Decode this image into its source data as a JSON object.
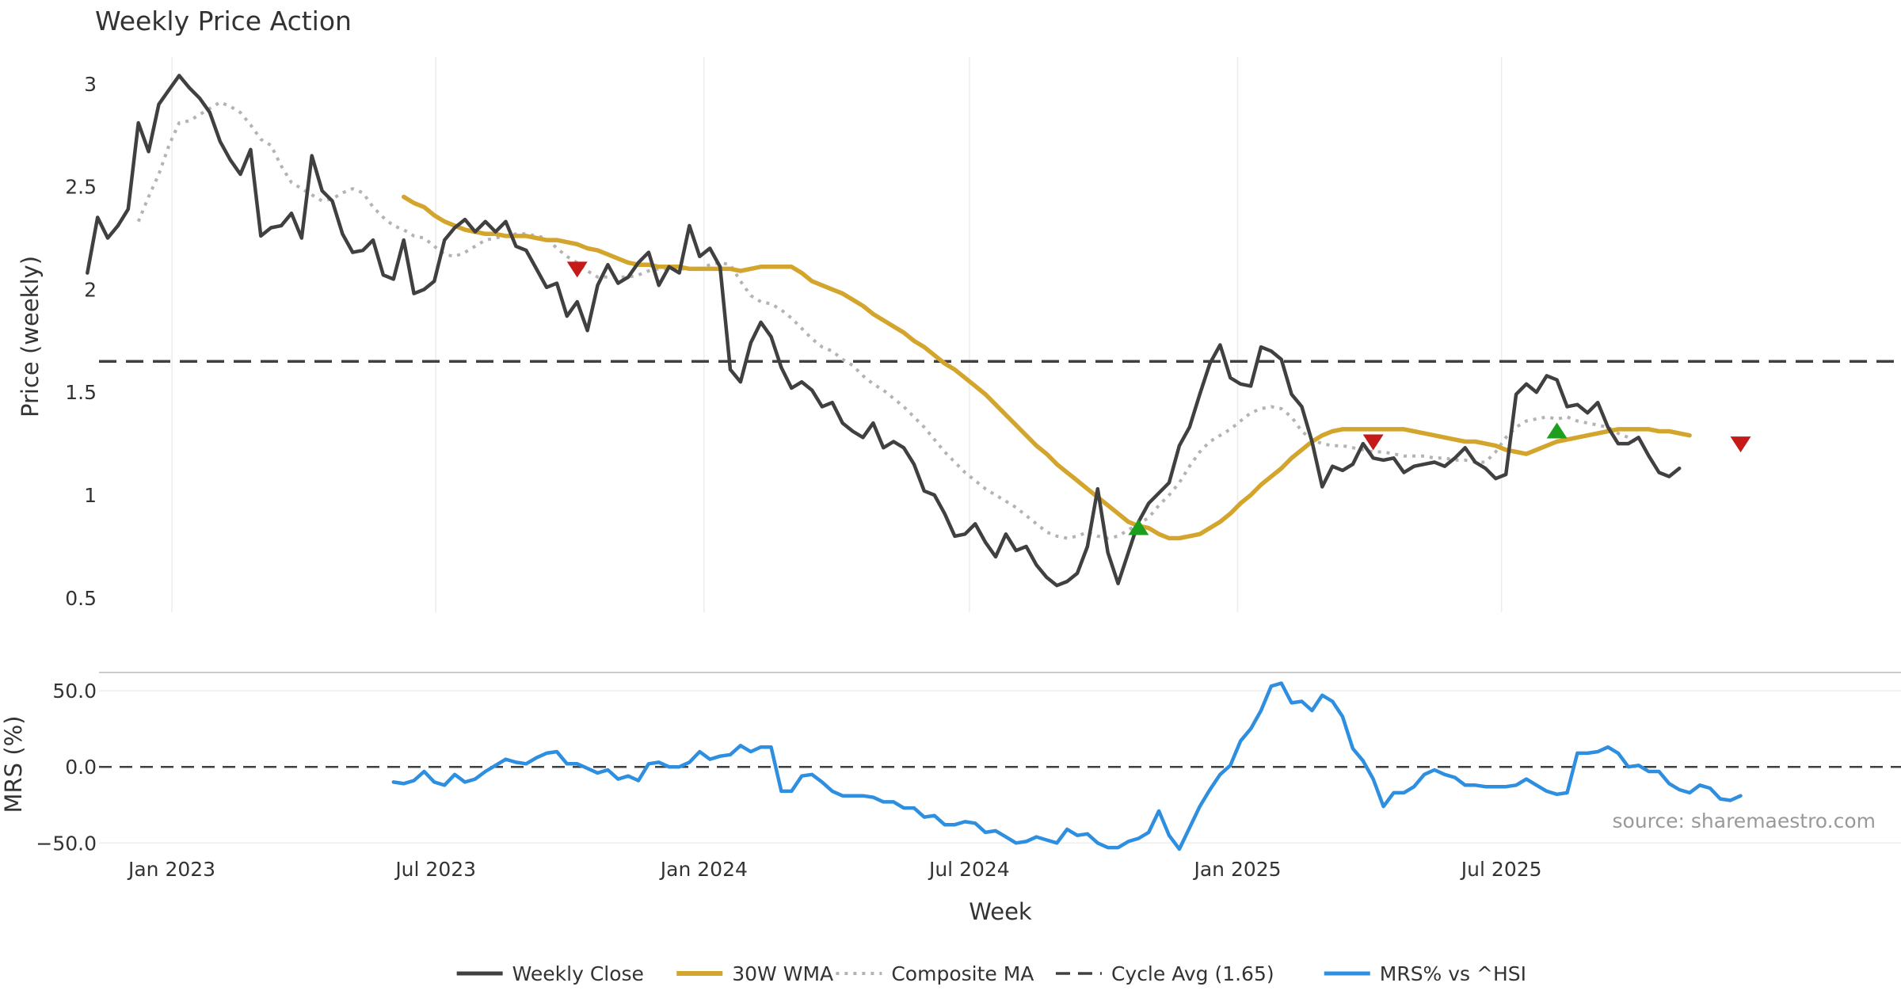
{
  "chart_data": {
    "type": "line",
    "title": "Weekly Price Action",
    "xlabel": "Week",
    "source": "source: sharemaestro.com",
    "x_ticks": [
      {
        "label": "Jan 2023",
        "date": "2023-01-01"
      },
      {
        "label": "Jul 2023",
        "date": "2023-07-01"
      },
      {
        "label": "Jan 2024",
        "date": "2024-01-01"
      },
      {
        "label": "Jul 2024",
        "date": "2024-07-01"
      },
      {
        "label": "Jan 2025",
        "date": "2025-01-01"
      },
      {
        "label": "Jul 2025",
        "date": "2025-07-01"
      }
    ],
    "x_range": [
      "2022-11-12",
      "2026-04-01"
    ],
    "price_panel": {
      "ylabel": "Price (weekly)",
      "ylim": [
        0.43,
        3.13
      ],
      "yticks": [
        0.5,
        1,
        1.5,
        2,
        2.5,
        3
      ],
      "ytick_labels": [
        "0.5",
        "1",
        "1.5",
        "2",
        "2.5",
        "3"
      ],
      "cycle_avg": 1.65,
      "series": [
        {
          "name": "Weekly Close",
          "color": "#404040",
          "style": "solid",
          "width": 4.5,
          "start": "2022-11-04",
          "values": [
            2.08,
            2.35,
            2.25,
            2.31,
            2.39,
            2.81,
            2.67,
            2.9,
            2.97,
            3.04,
            2.98,
            2.93,
            2.86,
            2.72,
            2.63,
            2.56,
            2.68,
            2.26,
            2.3,
            2.31,
            2.37,
            2.25,
            2.65,
            2.48,
            2.43,
            2.27,
            2.18,
            2.19,
            2.24,
            2.07,
            2.05,
            2.24,
            1.98,
            2.0,
            2.04,
            2.24,
            2.3,
            2.34,
            2.28,
            2.33,
            2.28,
            2.33,
            2.21,
            2.19,
            2.1,
            2.01,
            2.03,
            1.87,
            1.94,
            1.8,
            2.02,
            2.12,
            2.03,
            2.06,
            2.13,
            2.18,
            2.02,
            2.11,
            2.08,
            2.31,
            2.16,
            2.2,
            2.11,
            1.61,
            1.55,
            1.74,
            1.84,
            1.77,
            1.62,
            1.52,
            1.55,
            1.51,
            1.43,
            1.45,
            1.35,
            1.31,
            1.28,
            1.35,
            1.23,
            1.26,
            1.23,
            1.15,
            1.02,
            1.0,
            0.91,
            0.8,
            0.81,
            0.86,
            0.77,
            0.7,
            0.81,
            0.73,
            0.75,
            0.66,
            0.6,
            0.56,
            0.58,
            0.62,
            0.75,
            1.03,
            0.72,
            0.57,
            0.72,
            0.87,
            0.96,
            1.01,
            1.06,
            1.24,
            1.33,
            1.49,
            1.64,
            1.73,
            1.57,
            1.54,
            1.53,
            1.72,
            1.7,
            1.66,
            1.49,
            1.43,
            1.26,
            1.04,
            1.14,
            1.12,
            1.15,
            1.25,
            1.18,
            1.17,
            1.18,
            1.11,
            1.14,
            1.15,
            1.16,
            1.14,
            1.18,
            1.23,
            1.16,
            1.13,
            1.08,
            1.1,
            1.49,
            1.54,
            1.5,
            1.58,
            1.56,
            1.43,
            1.44,
            1.4,
            1.45,
            1.33,
            1.25,
            1.25,
            1.28,
            1.19,
            1.11,
            1.09,
            1.13
          ]
        },
        {
          "name": "30W WMA",
          "color": "#d4a52c",
          "style": "solid",
          "width": 5.5,
          "start": "2023-06-09",
          "values": [
            2.45,
            2.42,
            2.4,
            2.36,
            2.33,
            2.31,
            2.29,
            2.28,
            2.27,
            2.27,
            2.26,
            2.26,
            2.26,
            2.25,
            2.24,
            2.24,
            2.23,
            2.22,
            2.2,
            2.19,
            2.17,
            2.15,
            2.13,
            2.12,
            2.12,
            2.11,
            2.11,
            2.11,
            2.1,
            2.1,
            2.1,
            2.1,
            2.1,
            2.09,
            2.1,
            2.11,
            2.11,
            2.11,
            2.11,
            2.08,
            2.04,
            2.02,
            2.0,
            1.98,
            1.95,
            1.92,
            1.88,
            1.85,
            1.82,
            1.79,
            1.75,
            1.72,
            1.68,
            1.64,
            1.61,
            1.57,
            1.53,
            1.49,
            1.44,
            1.39,
            1.34,
            1.29,
            1.24,
            1.2,
            1.15,
            1.11,
            1.07,
            1.03,
            0.99,
            0.95,
            0.91,
            0.87,
            0.85,
            0.84,
            0.81,
            0.79,
            0.79,
            0.8,
            0.81,
            0.84,
            0.87,
            0.91,
            0.96,
            1.0,
            1.05,
            1.09,
            1.13,
            1.18,
            1.22,
            1.26,
            1.29,
            1.31,
            1.32,
            1.32,
            1.32,
            1.32,
            1.32,
            1.32,
            1.32,
            1.31,
            1.3,
            1.29,
            1.28,
            1.27,
            1.26,
            1.26,
            1.25,
            1.24,
            1.22,
            1.21,
            1.2,
            1.22,
            1.24,
            1.26,
            1.27,
            1.28,
            1.29,
            1.3,
            1.31,
            1.32,
            1.32,
            1.32,
            1.32,
            1.31,
            1.31,
            1.3,
            1.29
          ]
        },
        {
          "name": "Composite MA",
          "color": "#b3b3b3",
          "style": "dotted",
          "width": 4,
          "start": "2022-12-09",
          "values": [
            2.33,
            2.45,
            2.56,
            2.7,
            2.81,
            2.82,
            2.85,
            2.88,
            2.91,
            2.89,
            2.86,
            2.8,
            2.73,
            2.7,
            2.6,
            2.52,
            2.49,
            2.46,
            2.43,
            2.44,
            2.47,
            2.49,
            2.47,
            2.4,
            2.35,
            2.31,
            2.29,
            2.26,
            2.25,
            2.21,
            2.17,
            2.16,
            2.18,
            2.21,
            2.24,
            2.25,
            2.26,
            2.27,
            2.27,
            2.26,
            2.25,
            2.2,
            2.16,
            2.13,
            2.09,
            2.06,
            2.06,
            2.06,
            2.06,
            2.07,
            2.09,
            2.1,
            2.1,
            2.1,
            2.1,
            2.1,
            2.12,
            2.13,
            2.12,
            2.04,
            1.97,
            1.94,
            1.93,
            1.9,
            1.86,
            1.81,
            1.76,
            1.72,
            1.7,
            1.66,
            1.63,
            1.58,
            1.54,
            1.51,
            1.47,
            1.43,
            1.38,
            1.33,
            1.27,
            1.21,
            1.16,
            1.11,
            1.07,
            1.03,
            1.0,
            0.97,
            0.94,
            0.9,
            0.86,
            0.82,
            0.8,
            0.79,
            0.8,
            0.82,
            0.8,
            0.79,
            0.8,
            0.83,
            0.86,
            0.89,
            0.95,
            1.0,
            1.06,
            1.14,
            1.21,
            1.26,
            1.29,
            1.32,
            1.36,
            1.4,
            1.42,
            1.43,
            1.42,
            1.38,
            1.31,
            1.27,
            1.25,
            1.24,
            1.24,
            1.23,
            1.22,
            1.21,
            1.21,
            1.2,
            1.19,
            1.19,
            1.19,
            1.18,
            1.18,
            1.17,
            1.17,
            1.16,
            1.16,
            1.21,
            1.28,
            1.33,
            1.36,
            1.37,
            1.38,
            1.37,
            1.38,
            1.36,
            1.35,
            1.34,
            1.33,
            1.3,
            1.28,
            1.25
          ]
        }
      ],
      "signals": [
        {
          "type": "sell",
          "date": "2023-10-06",
          "value": 2.1,
          "color": "#c41a1a"
        },
        {
          "type": "buy",
          "date": "2024-10-25",
          "value": 0.84,
          "color": "#1e9e1e"
        },
        {
          "type": "sell",
          "date": "2025-04-04",
          "value": 1.26,
          "color": "#c41a1a"
        },
        {
          "type": "buy",
          "date": "2025-08-08",
          "value": 1.31,
          "color": "#1e9e1e"
        },
        {
          "type": "sell",
          "date": "2025-12-12",
          "value": 1.25,
          "color": "#c41a1a"
        }
      ]
    },
    "mrs_panel": {
      "ylabel": "MRS (%)",
      "ylim": [
        -54,
        62
      ],
      "yticks": [
        -50,
        0,
        50
      ],
      "ytick_labels": [
        "−50.0",
        "0.0",
        "50.0"
      ],
      "zero_line": 0,
      "series": [
        {
          "name": "MRS% vs ^HSI",
          "color": "#2e8fe0",
          "style": "solid",
          "width": 4.5,
          "start": "2023-06-02",
          "values": [
            -10,
            -11,
            -9,
            -3,
            -10,
            -12,
            -5,
            -10,
            -8,
            -3,
            1,
            5,
            3,
            2,
            6,
            9,
            10,
            2,
            2,
            -1,
            -4,
            -2,
            -8,
            -6,
            -9,
            2,
            3,
            0,
            0,
            3,
            10,
            5,
            7,
            8,
            14,
            10,
            13,
            13,
            -16,
            -16,
            -6,
            -5,
            -10,
            -16,
            -19,
            -19,
            -19,
            -20,
            -23,
            -23,
            -27,
            -27,
            -33,
            -32,
            -38,
            -38,
            -36,
            -37,
            -43,
            -42,
            -46,
            -50,
            -49,
            -46,
            -48,
            -50,
            -41,
            -45,
            -44,
            -50,
            -53,
            -53,
            -49,
            -47,
            -43,
            -29,
            -45,
            -54,
            -40,
            -26,
            -15,
            -5,
            1,
            17,
            25,
            37,
            53,
            55,
            42,
            43,
            37,
            47,
            43,
            33,
            12,
            4,
            -8,
            -26,
            -17,
            -17,
            -13,
            -5,
            -2,
            -5,
            -7,
            -12,
            -12,
            -13,
            -13,
            -13,
            -12,
            -8,
            -12,
            -16,
            -18,
            -17,
            9,
            9,
            10,
            13,
            9,
            0,
            1,
            -3,
            -3,
            -11,
            -15,
            -17,
            -12,
            -14,
            -21,
            -22,
            -19
          ]
        }
      ]
    },
    "legend": {
      "placement": "bottom-center",
      "items": [
        {
          "label": "Weekly Close",
          "color": "#404040",
          "style": "solid"
        },
        {
          "label": "30W WMA",
          "color": "#d4a52c",
          "style": "solid"
        },
        {
          "label": "Composite MA",
          "color": "#b3b3b3",
          "style": "dotted"
        },
        {
          "label": "Cycle Avg (1.65)",
          "color": "#404040",
          "style": "dashed"
        },
        {
          "label": "MRS% vs ^HSI",
          "color": "#2e8fe0",
          "style": "solid"
        }
      ]
    }
  }
}
